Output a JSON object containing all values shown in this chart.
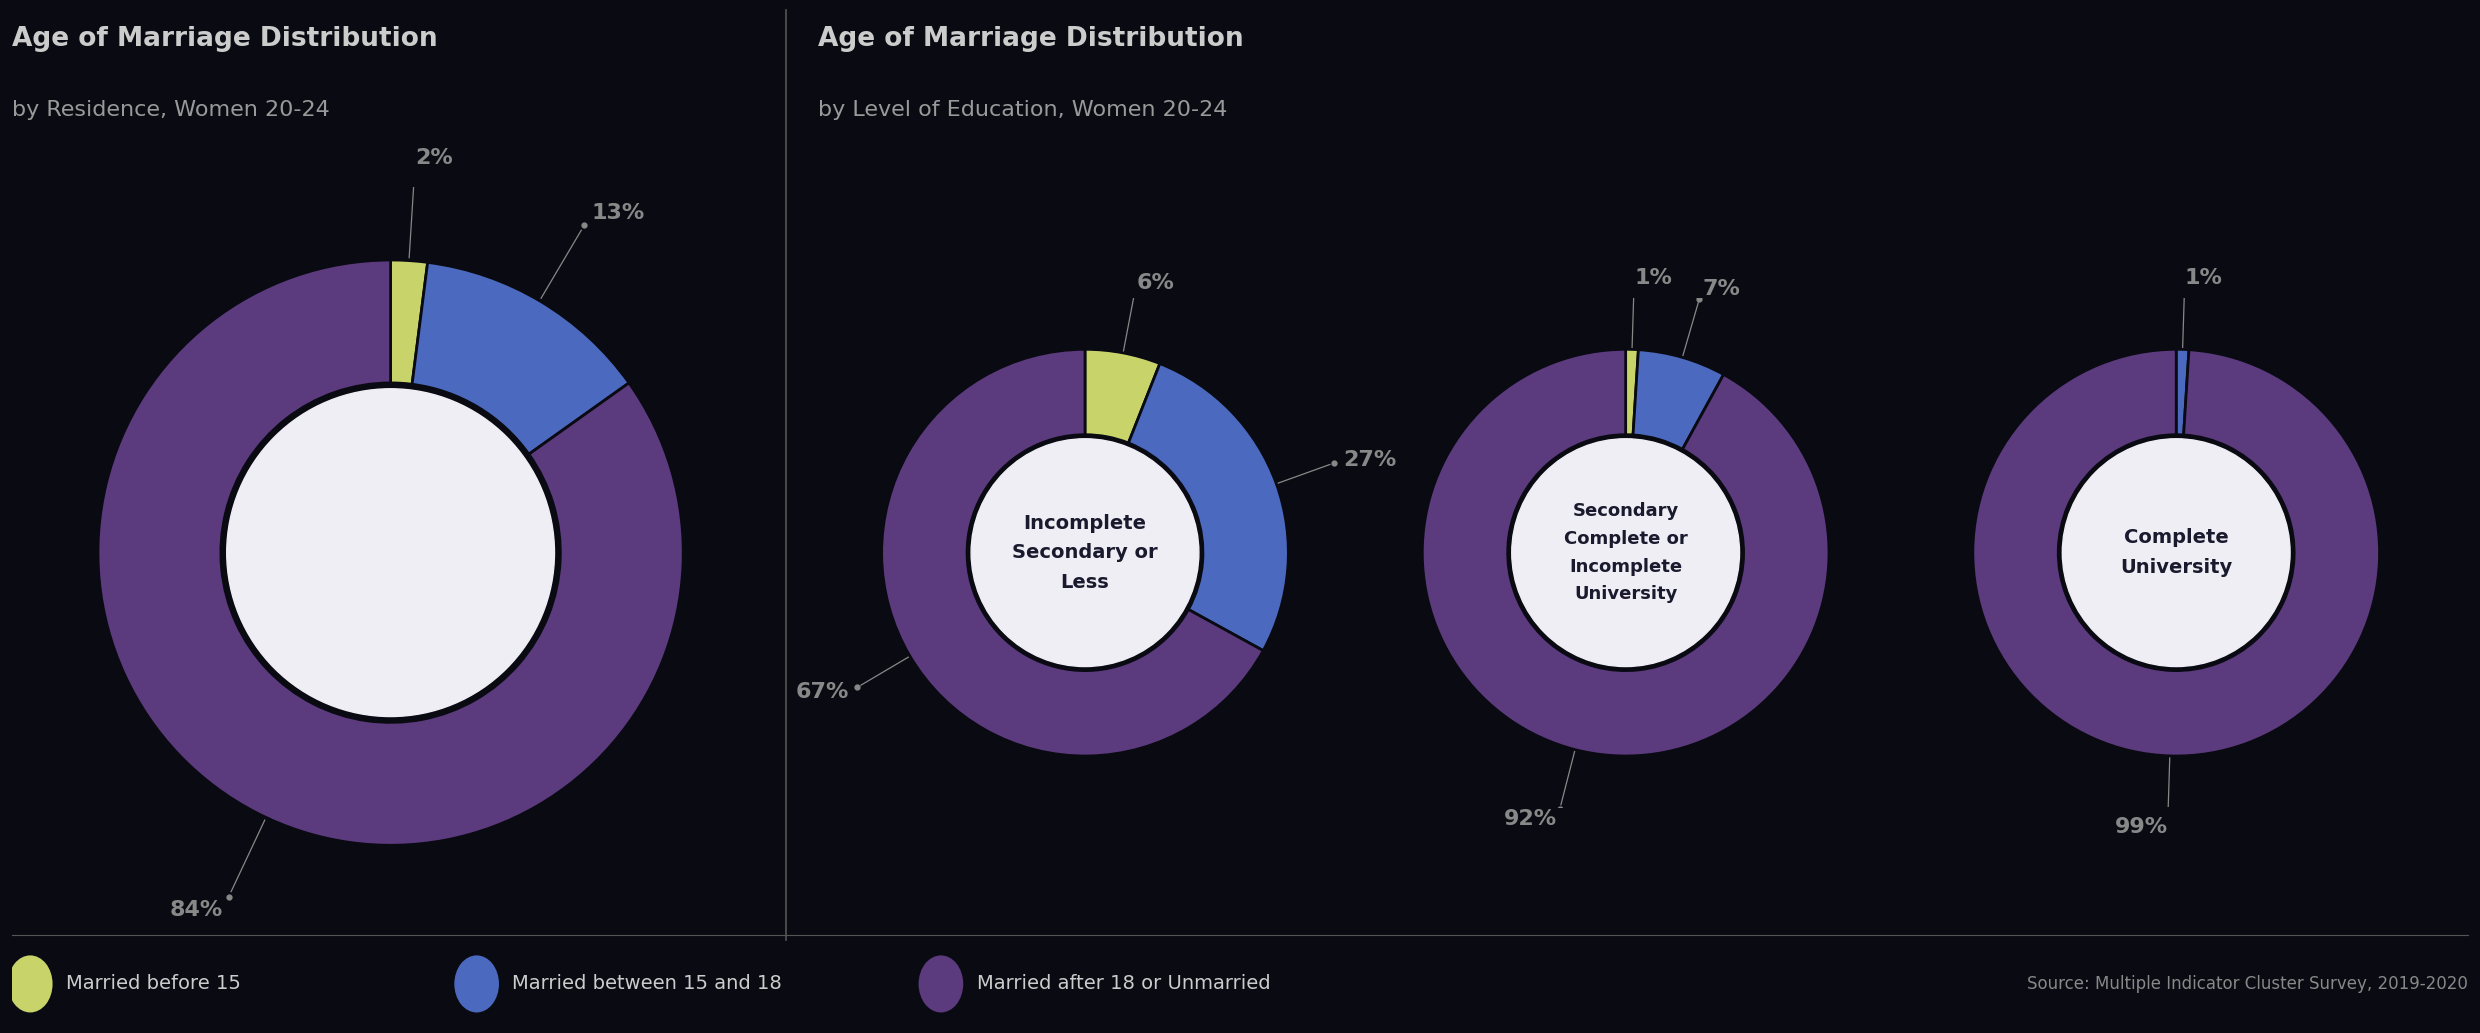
{
  "bg": "#0a0a12",
  "title1_main": "Age of Marriage Distribution",
  "title1_sub": "by Residence, Women 20-24",
  "title2_main": "Age of Marriage Distribution",
  "title2_sub": "by Level of Education, Women 20-24",
  "color_yellow": "#c8d46a",
  "color_blue": "#4b6abf",
  "color_purple": "#5b3a7e",
  "color_center": "#f0eef5",
  "color_title": "#cccccc",
  "color_subtitle": "#999999",
  "color_label": "#888888",
  "color_leader": "#888888",
  "color_sep": "#555555",
  "chart1_values": [
    2,
    13,
    84
  ],
  "chart1_labels": [
    "2%",
    "13%",
    "84%"
  ],
  "chart1_center": null,
  "chart2_values": [
    6,
    27,
    67
  ],
  "chart2_labels": [
    "6%",
    "27%",
    "67%"
  ],
  "chart2_center": "Incomplete\nSecondary or\nLess",
  "chart3_values": [
    1,
    7,
    92
  ],
  "chart3_labels": [
    "1%",
    "7%",
    "92%"
  ],
  "chart3_center": "Secondary\nComplete or\nIncomplete\nUniversity",
  "chart4_values": [
    0,
    1,
    99
  ],
  "chart4_labels": [
    "1%",
    "99%"
  ],
  "chart4_colors": [
    "blue",
    "purple"
  ],
  "chart4_center": "Complete\nUniversity",
  "legend": [
    {
      "label": "Married before 15",
      "color": "#c8d46a"
    },
    {
      "label": "Married between 15 and 18",
      "color": "#4b6abf"
    },
    {
      "label": "Married after 18 or Unmarried",
      "color": "#5b3a7e"
    }
  ],
  "source_text": "Source: Multiple Indicator Cluster Survey, 2019-2020"
}
